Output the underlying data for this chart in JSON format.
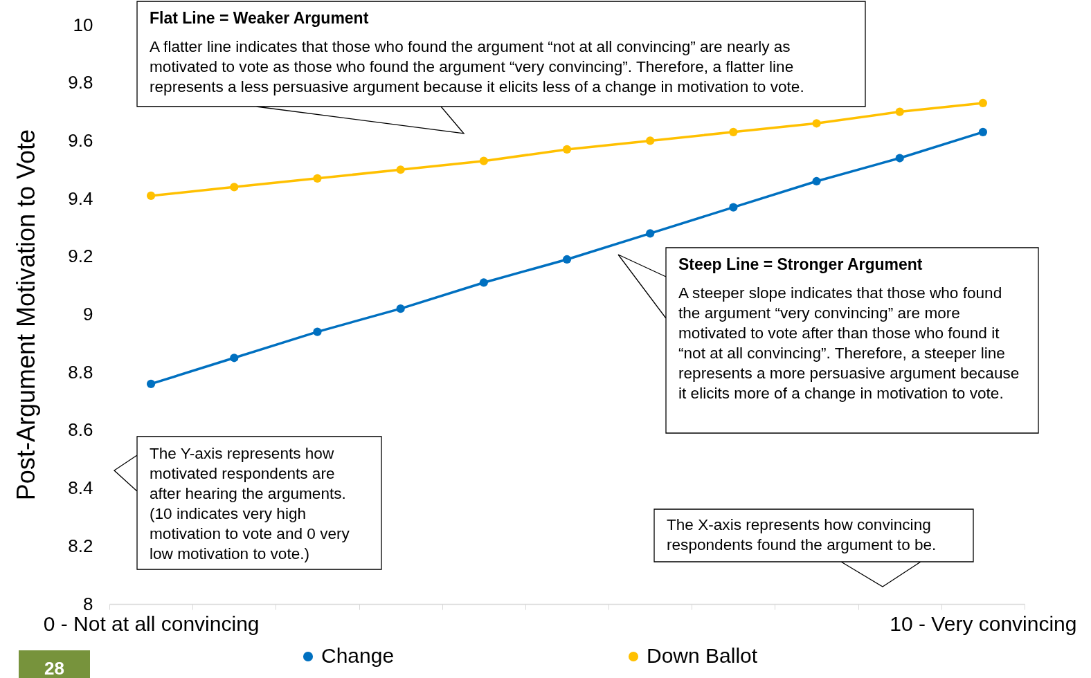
{
  "chart_data": {
    "type": "line",
    "ylabel": "Post-Argument Motivation to Vote",
    "categories": [
      "0 - Not at all convincing",
      null,
      null,
      null,
      null,
      null,
      null,
      null,
      null,
      null,
      "10 - Very convincing"
    ],
    "series": [
      {
        "name": "Change",
        "color": "#0070c0",
        "values": [
          8.76,
          8.85,
          8.94,
          9.02,
          9.11,
          9.19,
          9.28,
          9.37,
          9.46,
          9.54,
          9.63
        ]
      },
      {
        "name": "Down Ballot",
        "color": "#ffc000",
        "values": [
          9.41,
          9.44,
          9.47,
          9.5,
          9.53,
          9.57,
          9.6,
          9.63,
          9.66,
          9.7,
          9.73
        ]
      }
    ],
    "ylim": [
      8,
      10
    ],
    "yticks": [
      8,
      8.2,
      8.4,
      8.6,
      8.8,
      9,
      9.2,
      9.4,
      9.6,
      9.8,
      10
    ],
    "grid": false,
    "legend": "bottom",
    "marker": "circle",
    "line_style": "solid",
    "annotations": [
      "Flat Line = Weaker Argument",
      "A flatter line indicates that those who found the argument “not at all convincing” are nearly as motivated to vote as those who found the argument “very convincing”. Therefore, a flatter line represents a less persuasive argument because it elicits less of a change in motivation to vote.",
      "Steep Line = Stronger Argument",
      "A steeper slope indicates that those who found the argument “very convincing” are more motivated to vote after than those who found it “not at all convincing”. Therefore, a steeper line represents a more persuasive argument because it elicits more of a change in motivation to vote.",
      "The Y-axis represents how motivated respondents are after hearing the arguments. (10 indicates very high motivation to vote and 0 very low motivation to vote.)",
      "The X-axis represents how convincing respondents found the argument to be.",
      "28"
    ]
  }
}
